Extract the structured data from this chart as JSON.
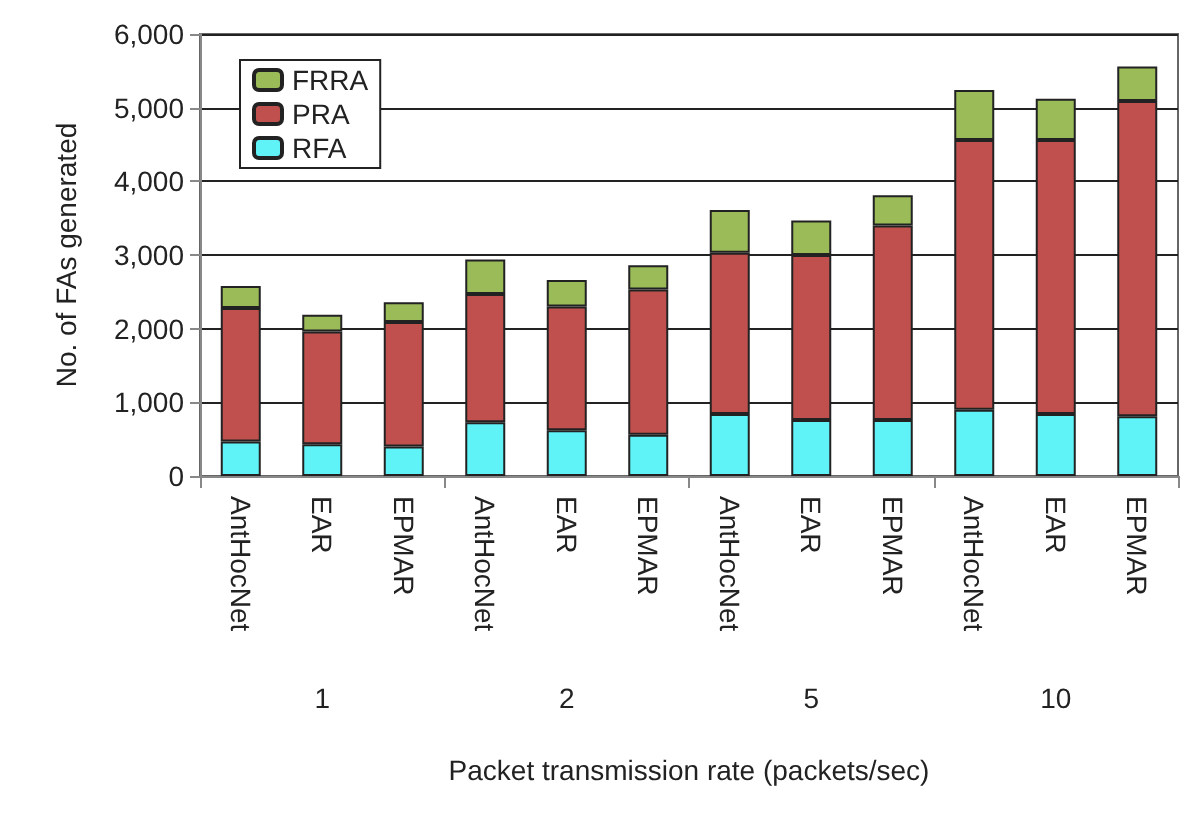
{
  "chart_data": {
    "type": "bar",
    "stacked": true,
    "xlabel": "Packet transmission rate (packets/sec)",
    "ylabel": "No. of FAs generated",
    "categories": [
      "AntHocNet",
      "EAR",
      "EPMAR",
      "AntHocNet",
      "EAR",
      "EPMAR",
      "AntHocNet",
      "EAR",
      "EPMAR",
      "AntHocNet",
      "EAR",
      "EPMAR"
    ],
    "annotations": [
      "1",
      "2",
      "5",
      "10"
    ],
    "series": [
      {
        "name": "RFA",
        "color": "#5ff3f7",
        "values": [
          470,
          430,
          400,
          730,
          620,
          560,
          840,
          760,
          760,
          900,
          840,
          810
        ]
      },
      {
        "name": "PRA",
        "color": "#c0504d",
        "values": [
          1810,
          1530,
          1690,
          1740,
          1680,
          1970,
          2190,
          2240,
          2640,
          3660,
          3720,
          4280
        ]
      },
      {
        "name": "FRRA",
        "color": "#9bbb59",
        "values": [
          300,
          230,
          270,
          470,
          360,
          330,
          580,
          470,
          410,
          680,
          560,
          470
        ]
      }
    ],
    "ylim": [
      0,
      6000
    ],
    "yticks": [
      0,
      {
        "value": 1000,
        "label": "1,000"
      },
      {
        "value": 2000,
        "label": "2,000"
      },
      {
        "value": 3000,
        "label": "3,000"
      },
      {
        "value": 4000,
        "label": "4,000"
      },
      {
        "value": 5000,
        "label": "5,000"
      },
      {
        "value": 6000,
        "label": "6,000"
      }
    ],
    "grid": "y",
    "legend": "top left"
  }
}
